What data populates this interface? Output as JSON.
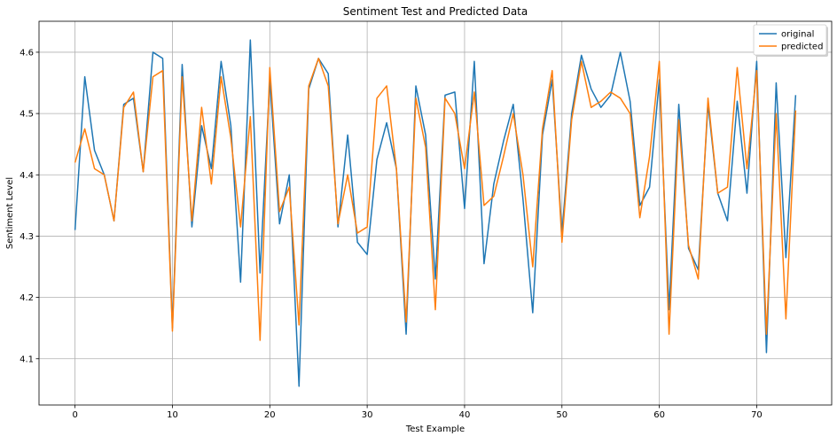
{
  "chart_data": {
    "type": "line",
    "title": "Sentiment Test and Predicted Data",
    "xlabel": "Test Example",
    "ylabel": "Sentiment Level",
    "xlim": [
      -3.7,
      77.7
    ],
    "ylim": [
      4.0245,
      4.6505
    ],
    "xticks": [
      0,
      10,
      20,
      30,
      40,
      50,
      60,
      70
    ],
    "yticks": [
      4.1,
      4.2,
      4.3,
      4.4,
      4.5,
      4.6
    ],
    "ytick_labels": [
      "4.1",
      "4.2",
      "4.3",
      "4.4",
      "4.5",
      "4.6"
    ],
    "grid": true,
    "legend_position": "top-right",
    "x": [
      0,
      1,
      2,
      3,
      4,
      5,
      6,
      7,
      8,
      9,
      10,
      11,
      12,
      13,
      14,
      15,
      16,
      17,
      18,
      19,
      20,
      21,
      22,
      23,
      24,
      25,
      26,
      27,
      28,
      29,
      30,
      31,
      32,
      33,
      34,
      35,
      36,
      37,
      38,
      39,
      40,
      41,
      42,
      43,
      44,
      45,
      46,
      47,
      48,
      49,
      50,
      51,
      52,
      53,
      54,
      55,
      56,
      57,
      58,
      59,
      60,
      61,
      62,
      63,
      64,
      65,
      66,
      67,
      68,
      69,
      70,
      71,
      72,
      73,
      74
    ],
    "series": [
      {
        "name": "original",
        "color": "#1f77b4",
        "values": [
          4.31,
          4.56,
          4.44,
          4.4,
          4.325,
          4.515,
          4.525,
          4.405,
          4.6,
          4.59,
          4.15,
          4.58,
          4.315,
          4.48,
          4.41,
          4.585,
          4.48,
          4.225,
          4.62,
          4.24,
          4.555,
          4.32,
          4.4,
          4.055,
          4.54,
          4.59,
          4.565,
          4.315,
          4.465,
          4.29,
          4.27,
          4.425,
          4.485,
          4.41,
          4.14,
          4.545,
          4.465,
          4.23,
          4.53,
          4.535,
          4.345,
          4.585,
          4.255,
          4.385,
          4.455,
          4.515,
          4.36,
          4.175,
          4.465,
          4.555,
          4.305,
          4.5,
          4.595,
          4.54,
          4.51,
          4.53,
          4.6,
          4.52,
          4.35,
          4.38,
          4.555,
          4.18,
          4.515,
          4.28,
          4.245,
          4.515,
          4.37,
          4.325,
          4.52,
          4.37,
          4.585,
          4.11,
          4.55,
          4.265,
          4.53
        ]
      },
      {
        "name": "predicted",
        "color": "#ff7f0e",
        "values": [
          4.42,
          4.475,
          4.41,
          4.4,
          4.325,
          4.51,
          4.535,
          4.405,
          4.56,
          4.57,
          4.145,
          4.56,
          4.325,
          4.51,
          4.385,
          4.56,
          4.46,
          4.315,
          4.495,
          4.13,
          4.575,
          4.34,
          4.38,
          4.155,
          4.545,
          4.59,
          4.545,
          4.32,
          4.4,
          4.305,
          4.315,
          4.525,
          4.545,
          4.41,
          4.16,
          4.525,
          4.445,
          4.18,
          4.525,
          4.5,
          4.41,
          4.535,
          4.35,
          4.365,
          4.43,
          4.5,
          4.4,
          4.25,
          4.475,
          4.57,
          4.29,
          4.49,
          4.585,
          4.51,
          4.52,
          4.535,
          4.525,
          4.5,
          4.33,
          4.43,
          4.585,
          4.14,
          4.49,
          4.285,
          4.23,
          4.525,
          4.37,
          4.38,
          4.575,
          4.41,
          4.57,
          4.14,
          4.5,
          4.165,
          4.505
        ]
      }
    ]
  }
}
